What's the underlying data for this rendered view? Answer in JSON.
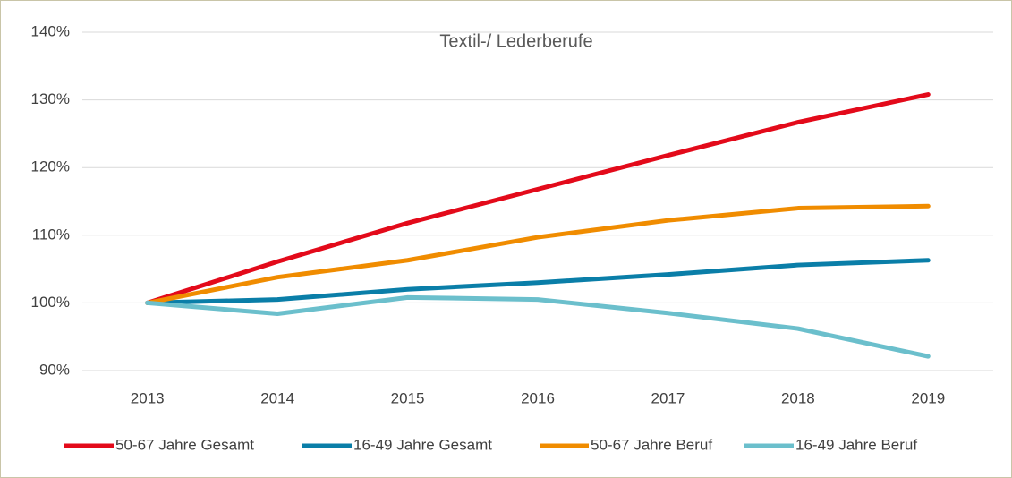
{
  "chart_data": {
    "type": "line",
    "title": "Textil-/ Lederberufe",
    "categories": [
      "2013",
      "2014",
      "2015",
      "2016",
      "2017",
      "2018",
      "2019"
    ],
    "series": [
      {
        "name": "50-67 Jahre Gesamt",
        "color": "#e30a1a",
        "values": [
          100,
          106.1,
          111.8,
          116.8,
          121.8,
          126.7,
          130.8
        ]
      },
      {
        "name": "16-49 Jahre Gesamt",
        "color": "#0a7ea8",
        "values": [
          100,
          100.5,
          102.0,
          103.0,
          104.2,
          105.6,
          106.3
        ]
      },
      {
        "name": "50-67 Jahre Beruf",
        "color": "#f08c00",
        "values": [
          100,
          103.8,
          106.3,
          109.7,
          112.2,
          114.0,
          114.3
        ]
      },
      {
        "name": "16-49 Jahre Beruf",
        "color": "#6bbfcc",
        "values": [
          100,
          98.4,
          100.8,
          100.5,
          98.5,
          96.2,
          92.1
        ]
      }
    ],
    "ylim": [
      90,
      140
    ],
    "yticks": [
      {
        "value": 90,
        "label": "90%"
      },
      {
        "value": 100,
        "label": "100%"
      },
      {
        "value": 110,
        "label": "110%"
      },
      {
        "value": 120,
        "label": "120%"
      },
      {
        "value": 130,
        "label": "130%"
      },
      {
        "value": 140,
        "label": "140%"
      }
    ],
    "grid": true,
    "legend": "bottom"
  }
}
